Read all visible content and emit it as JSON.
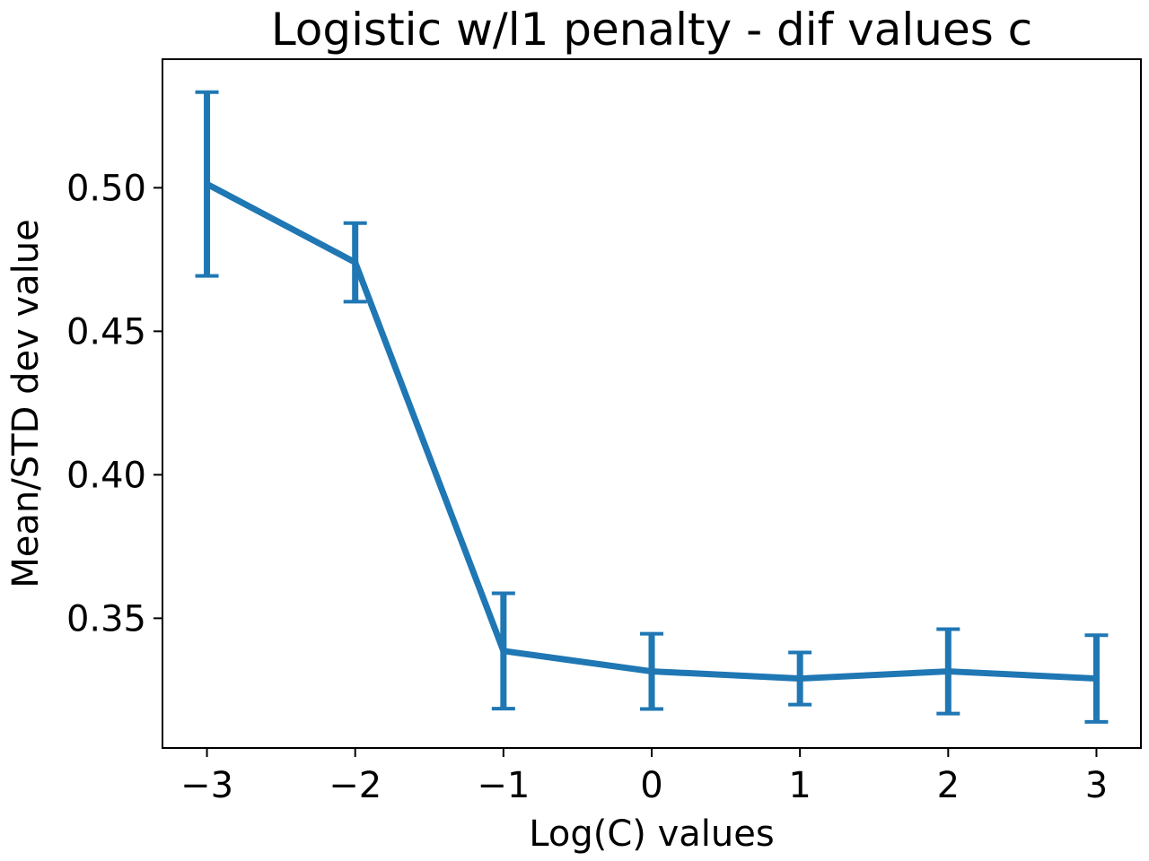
{
  "chart_data": {
    "type": "line",
    "title": "Logistic w/l1 penalty - dif values c",
    "xlabel": "Log(C) values",
    "ylabel": "Mean/STD dev value",
    "x": [
      -3,
      -2,
      -1,
      0,
      1,
      2,
      3
    ],
    "x_tick_labels": [
      "−3",
      "−2",
      "−1",
      "0",
      "1",
      "2",
      "3"
    ],
    "y_ticks": [
      0.35,
      0.4,
      0.45,
      0.5
    ],
    "y_tick_labels": [
      "0.35",
      "0.40",
      "0.45",
      "0.50"
    ],
    "xlim": [
      -3.3,
      3.3
    ],
    "ylim": [
      0.3048,
      0.5448
    ],
    "series": [
      {
        "values": [
          0.5013,
          0.474,
          0.3386,
          0.3315,
          0.329,
          0.3315,
          0.329
        ],
        "error": [
          0.032,
          0.0137,
          0.0201,
          0.0131,
          0.0091,
          0.0147,
          0.0151
        ],
        "color": "#1f77b4"
      }
    ],
    "grid": false,
    "legend": "none"
  }
}
